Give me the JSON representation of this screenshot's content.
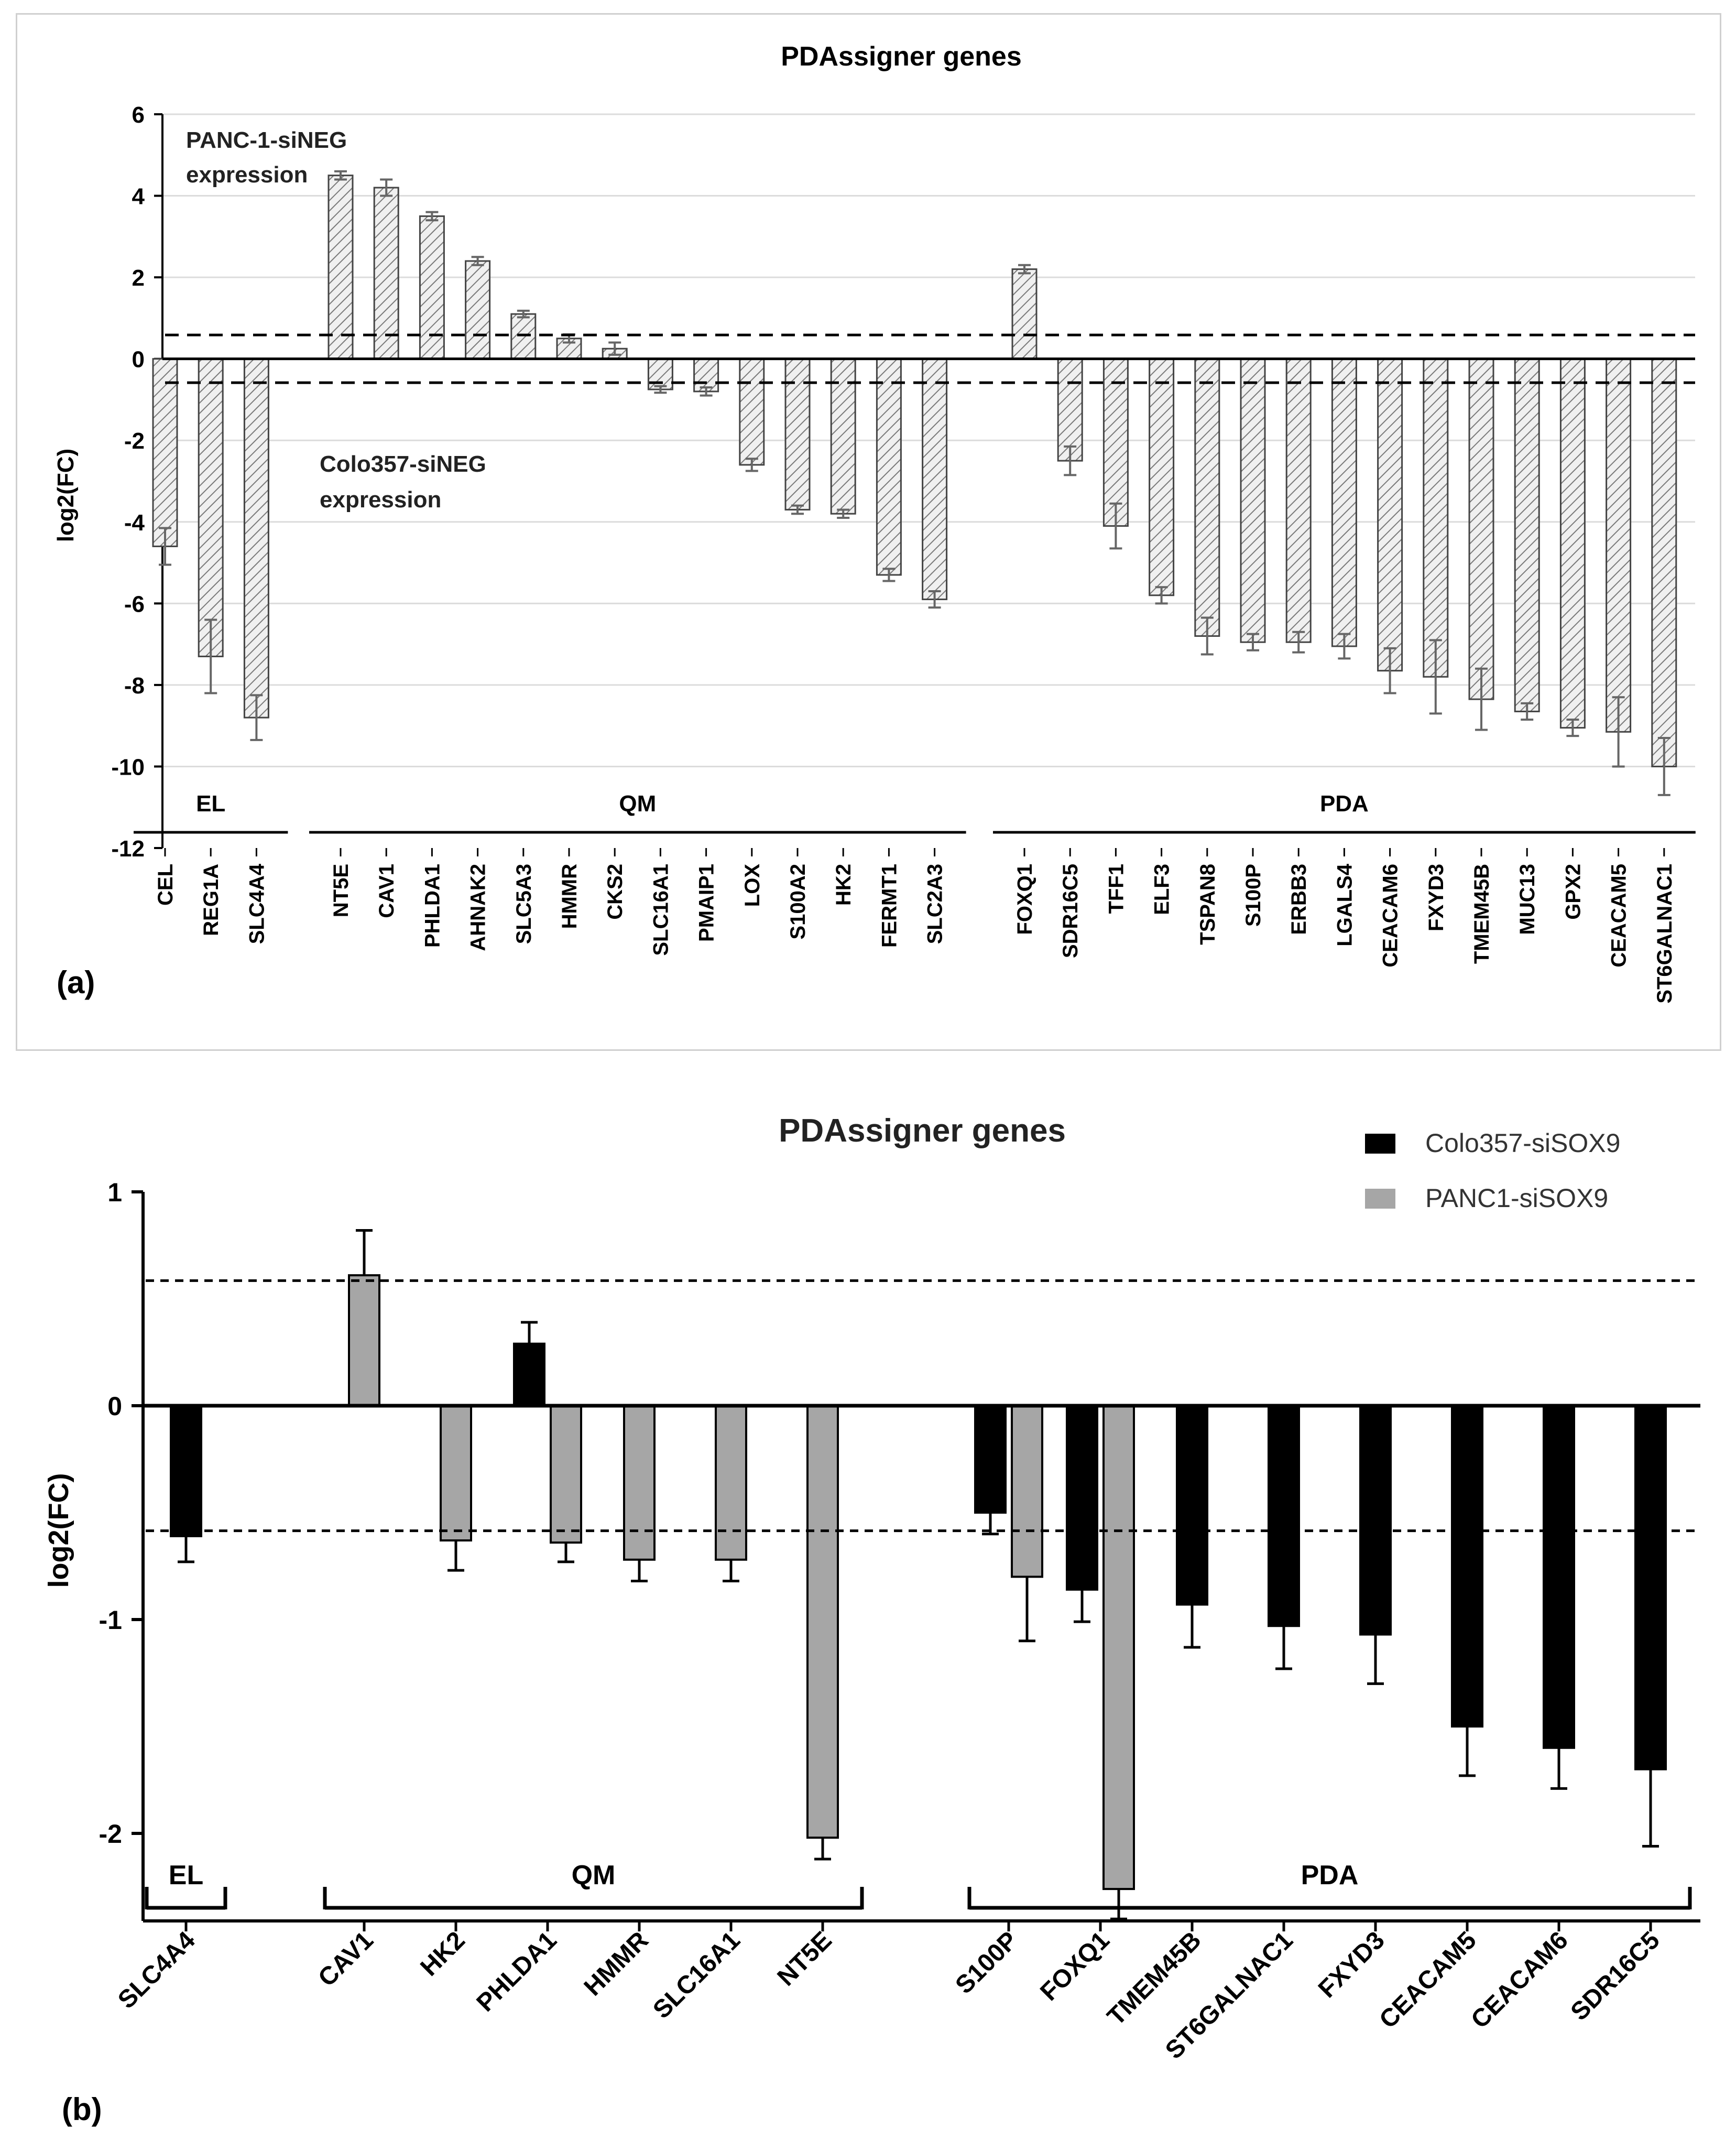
{
  "chart_data": [
    {
      "panel": "(a)",
      "type": "bar",
      "title": "PDAssigner genes",
      "ylabel": "log2(FC)",
      "ylim": [
        -12,
        6
      ],
      "yticks": [
        6,
        4,
        2,
        0,
        -2,
        -4,
        -6,
        -8,
        -10,
        -12
      ],
      "threshold_lines": [
        0.585,
        -0.585
      ],
      "annotations": [
        "PANC-1-siNEG",
        "expression",
        "Colo357-siNEG",
        "expression"
      ],
      "groups": [
        {
          "label": "EL",
          "categories": [
            "CEL",
            "REG1A",
            "SLC4A4"
          ],
          "values": [
            -4.6,
            -7.3,
            -8.8
          ],
          "errors": [
            0.45,
            0.9,
            0.55
          ]
        },
        {
          "label": "QM",
          "categories": [
            "NT5E",
            "CAV1",
            "PHLDA1",
            "AHNAK2",
            "SLC5A3",
            "HMMR",
            "CKS2",
            "SLC16A1",
            "PMAIP1",
            "LOX",
            "S100A2",
            "HK2",
            "FERMT1",
            "SLC2A3"
          ],
          "values": [
            4.5,
            4.2,
            3.5,
            2.4,
            1.1,
            0.5,
            0.25,
            -0.75,
            -0.8,
            -2.6,
            -3.7,
            -3.8,
            -5.3,
            -5.9
          ],
          "errors": [
            0.1,
            0.2,
            0.1,
            0.1,
            0.08,
            0.1,
            0.15,
            0.08,
            0.1,
            0.15,
            0.1,
            0.1,
            0.15,
            0.2
          ]
        },
        {
          "label": "PDA",
          "categories": [
            "FOXQ1",
            "SDR16C5",
            "TFF1",
            "ELF3",
            "TSPAN8",
            "S100P",
            "ERBB3",
            "LGALS4",
            "CEACAM6",
            "FXYD3",
            "TMEM45B",
            "MUC13",
            "GPX2",
            "CEACAM5",
            "ST6GALNAC1"
          ],
          "values": [
            2.2,
            -2.5,
            -4.1,
            -5.8,
            -6.8,
            -6.95,
            -6.95,
            -7.05,
            -7.65,
            -7.8,
            -8.35,
            -8.65,
            -9.05,
            -9.15,
            -10.0
          ],
          "errors": [
            0.1,
            0.35,
            0.55,
            0.2,
            0.45,
            0.2,
            0.25,
            0.3,
            0.55,
            0.9,
            0.75,
            0.2,
            0.2,
            0.85,
            0.7
          ]
        }
      ]
    },
    {
      "panel": "(b)",
      "type": "bar",
      "title": "PDAssigner genes",
      "ylabel": "log2(FC)",
      "ylim": [
        -2.3,
        1
      ],
      "yticks": [
        1,
        0,
        -1,
        -2
      ],
      "threshold_lines": [
        0.585,
        -0.585
      ],
      "series": [
        {
          "name": "Colo357-siSOX9",
          "color": "#000000"
        },
        {
          "name": "PANC1-siSOX9",
          "color": "#a6a6a6"
        }
      ],
      "groups": [
        {
          "label": "EL",
          "categories": [
            "SLC4A4"
          ]
        },
        {
          "label": "QM",
          "categories": [
            "CAV1",
            "HK2",
            "PHLDA1",
            "HMMR",
            "SLC16A1",
            "NT5E"
          ]
        },
        {
          "label": "PDA",
          "categories": [
            "S100P",
            "FOXQ1",
            "TMEM45B",
            "ST6GALNAC1",
            "FXYD3",
            "CEACAM5",
            "CEACAM6",
            "SDR16C5"
          ]
        }
      ],
      "bars": [
        {
          "gene": "SLC4A4",
          "series": "Colo357-siSOX9",
          "value": -0.61,
          "error": 0.12
        },
        {
          "gene": "CAV1",
          "series": "PANC1-siSOX9",
          "value": 0.61,
          "error": 0.21
        },
        {
          "gene": "HK2",
          "series": "PANC1-siSOX9",
          "value": -0.63,
          "error": 0.14
        },
        {
          "gene": "PHLDA1",
          "series": "Colo357-siSOX9",
          "value": 0.29,
          "error": 0.1
        },
        {
          "gene": "PHLDA1",
          "series": "PANC1-siSOX9",
          "value": -0.64,
          "error": 0.09
        },
        {
          "gene": "HMMR",
          "series": "PANC1-siSOX9",
          "value": -0.72,
          "error": 0.1
        },
        {
          "gene": "SLC16A1",
          "series": "PANC1-siSOX9",
          "value": -0.72,
          "error": 0.1
        },
        {
          "gene": "NT5E",
          "series": "PANC1-siSOX9",
          "value": -2.02,
          "error": 0.1
        },
        {
          "gene": "S100P",
          "series": "Colo357-siSOX9",
          "value": -0.5,
          "error": 0.1
        },
        {
          "gene": "S100P",
          "series": "PANC1-siSOX9",
          "value": -0.8,
          "error": 0.3
        },
        {
          "gene": "FOXQ1",
          "series": "Colo357-siSOX9",
          "value": -0.86,
          "error": 0.15
        },
        {
          "gene": "FOXQ1",
          "series": "PANC1-siSOX9",
          "value": -2.26,
          "error": 0.14
        },
        {
          "gene": "TMEM45B",
          "series": "Colo357-siSOX9",
          "value": -0.93,
          "error": 0.2
        },
        {
          "gene": "ST6GALNAC1",
          "series": "Colo357-siSOX9",
          "value": -1.03,
          "error": 0.2
        },
        {
          "gene": "FXYD3",
          "series": "Colo357-siSOX9",
          "value": -1.07,
          "error": 0.23
        },
        {
          "gene": "CEACAM5",
          "series": "Colo357-siSOX9",
          "value": -1.5,
          "error": 0.23
        },
        {
          "gene": "CEACAM6",
          "series": "Colo357-siSOX9",
          "value": -1.6,
          "error": 0.19
        },
        {
          "gene": "SDR16C5",
          "series": "Colo357-siSOX9",
          "value": -1.7,
          "error": 0.36
        }
      ]
    }
  ]
}
